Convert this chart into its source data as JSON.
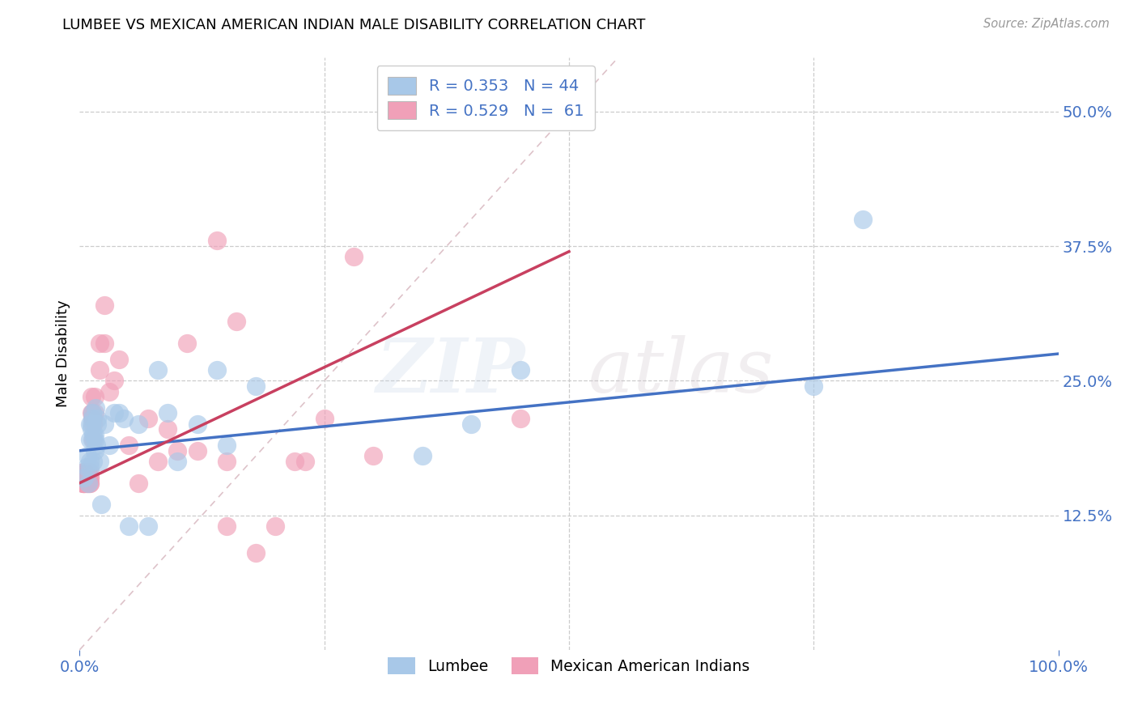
{
  "title": "LUMBEE VS MEXICAN AMERICAN INDIAN MALE DISABILITY CORRELATION CHART",
  "source": "Source: ZipAtlas.com",
  "ylabel": "Male Disability",
  "yticks": [
    0.125,
    0.25,
    0.375,
    0.5
  ],
  "ytick_labels": [
    "12.5%",
    "25.0%",
    "37.5%",
    "50.0%"
  ],
  "xtick_labels": [
    "0.0%",
    "100.0%"
  ],
  "xlim": [
    0.0,
    1.0
  ],
  "ylim": [
    0.0,
    0.55
  ],
  "legend_r1": "R = 0.353",
  "legend_n1": "N = 44",
  "legend_r2": "R = 0.529",
  "legend_n2": "N =  61",
  "lumbee_color": "#a8c8e8",
  "mexican_color": "#f0a0b8",
  "lumbee_line_color": "#4472c4",
  "mexican_line_color": "#c84060",
  "diagonal_color": "#d8b8c0",
  "background": "#ffffff",
  "lumbee_line_x0": 0.0,
  "lumbee_line_y0": 0.185,
  "lumbee_line_x1": 1.0,
  "lumbee_line_y1": 0.275,
  "mexican_line_x0": 0.0,
  "mexican_line_y0": 0.155,
  "mexican_line_x1": 0.5,
  "mexican_line_y1": 0.37,
  "lumbee_x": [
    0.005,
    0.007,
    0.008,
    0.009,
    0.01,
    0.01,
    0.01,
    0.01,
    0.012,
    0.012,
    0.013,
    0.013,
    0.013,
    0.014,
    0.014,
    0.015,
    0.015,
    0.015,
    0.016,
    0.017,
    0.018,
    0.018,
    0.02,
    0.022,
    0.025,
    0.03,
    0.035,
    0.04,
    0.045,
    0.05,
    0.06,
    0.07,
    0.08,
    0.09,
    0.1,
    0.12,
    0.14,
    0.15,
    0.18,
    0.35,
    0.4,
    0.45,
    0.75,
    0.8
  ],
  "lumbee_y": [
    0.16,
    0.17,
    0.18,
    0.155,
    0.17,
    0.175,
    0.195,
    0.21,
    0.21,
    0.205,
    0.195,
    0.215,
    0.22,
    0.2,
    0.175,
    0.2,
    0.195,
    0.185,
    0.225,
    0.19,
    0.215,
    0.21,
    0.175,
    0.135,
    0.21,
    0.19,
    0.22,
    0.22,
    0.215,
    0.115,
    0.21,
    0.115,
    0.26,
    0.22,
    0.175,
    0.21,
    0.26,
    0.19,
    0.245,
    0.18,
    0.21,
    0.26,
    0.245,
    0.4
  ],
  "mexican_x": [
    0.003,
    0.003,
    0.004,
    0.004,
    0.004,
    0.005,
    0.005,
    0.005,
    0.005,
    0.006,
    0.006,
    0.007,
    0.007,
    0.007,
    0.008,
    0.008,
    0.008,
    0.009,
    0.009,
    0.009,
    0.01,
    0.01,
    0.01,
    0.01,
    0.01,
    0.012,
    0.012,
    0.013,
    0.013,
    0.014,
    0.014,
    0.014,
    0.015,
    0.015,
    0.02,
    0.02,
    0.025,
    0.025,
    0.03,
    0.035,
    0.04,
    0.05,
    0.06,
    0.07,
    0.08,
    0.09,
    0.1,
    0.11,
    0.12,
    0.14,
    0.15,
    0.15,
    0.16,
    0.18,
    0.2,
    0.22,
    0.23,
    0.25,
    0.28,
    0.3,
    0.45
  ],
  "mexican_y": [
    0.155,
    0.16,
    0.155,
    0.165,
    0.155,
    0.155,
    0.16,
    0.165,
    0.155,
    0.155,
    0.165,
    0.155,
    0.16,
    0.165,
    0.155,
    0.16,
    0.165,
    0.155,
    0.16,
    0.165,
    0.16,
    0.165,
    0.155,
    0.155,
    0.16,
    0.22,
    0.235,
    0.22,
    0.215,
    0.195,
    0.21,
    0.215,
    0.22,
    0.235,
    0.285,
    0.26,
    0.32,
    0.285,
    0.24,
    0.25,
    0.27,
    0.19,
    0.155,
    0.215,
    0.175,
    0.205,
    0.185,
    0.285,
    0.185,
    0.38,
    0.115,
    0.175,
    0.305,
    0.09,
    0.115,
    0.175,
    0.175,
    0.215,
    0.365,
    0.18,
    0.215
  ]
}
